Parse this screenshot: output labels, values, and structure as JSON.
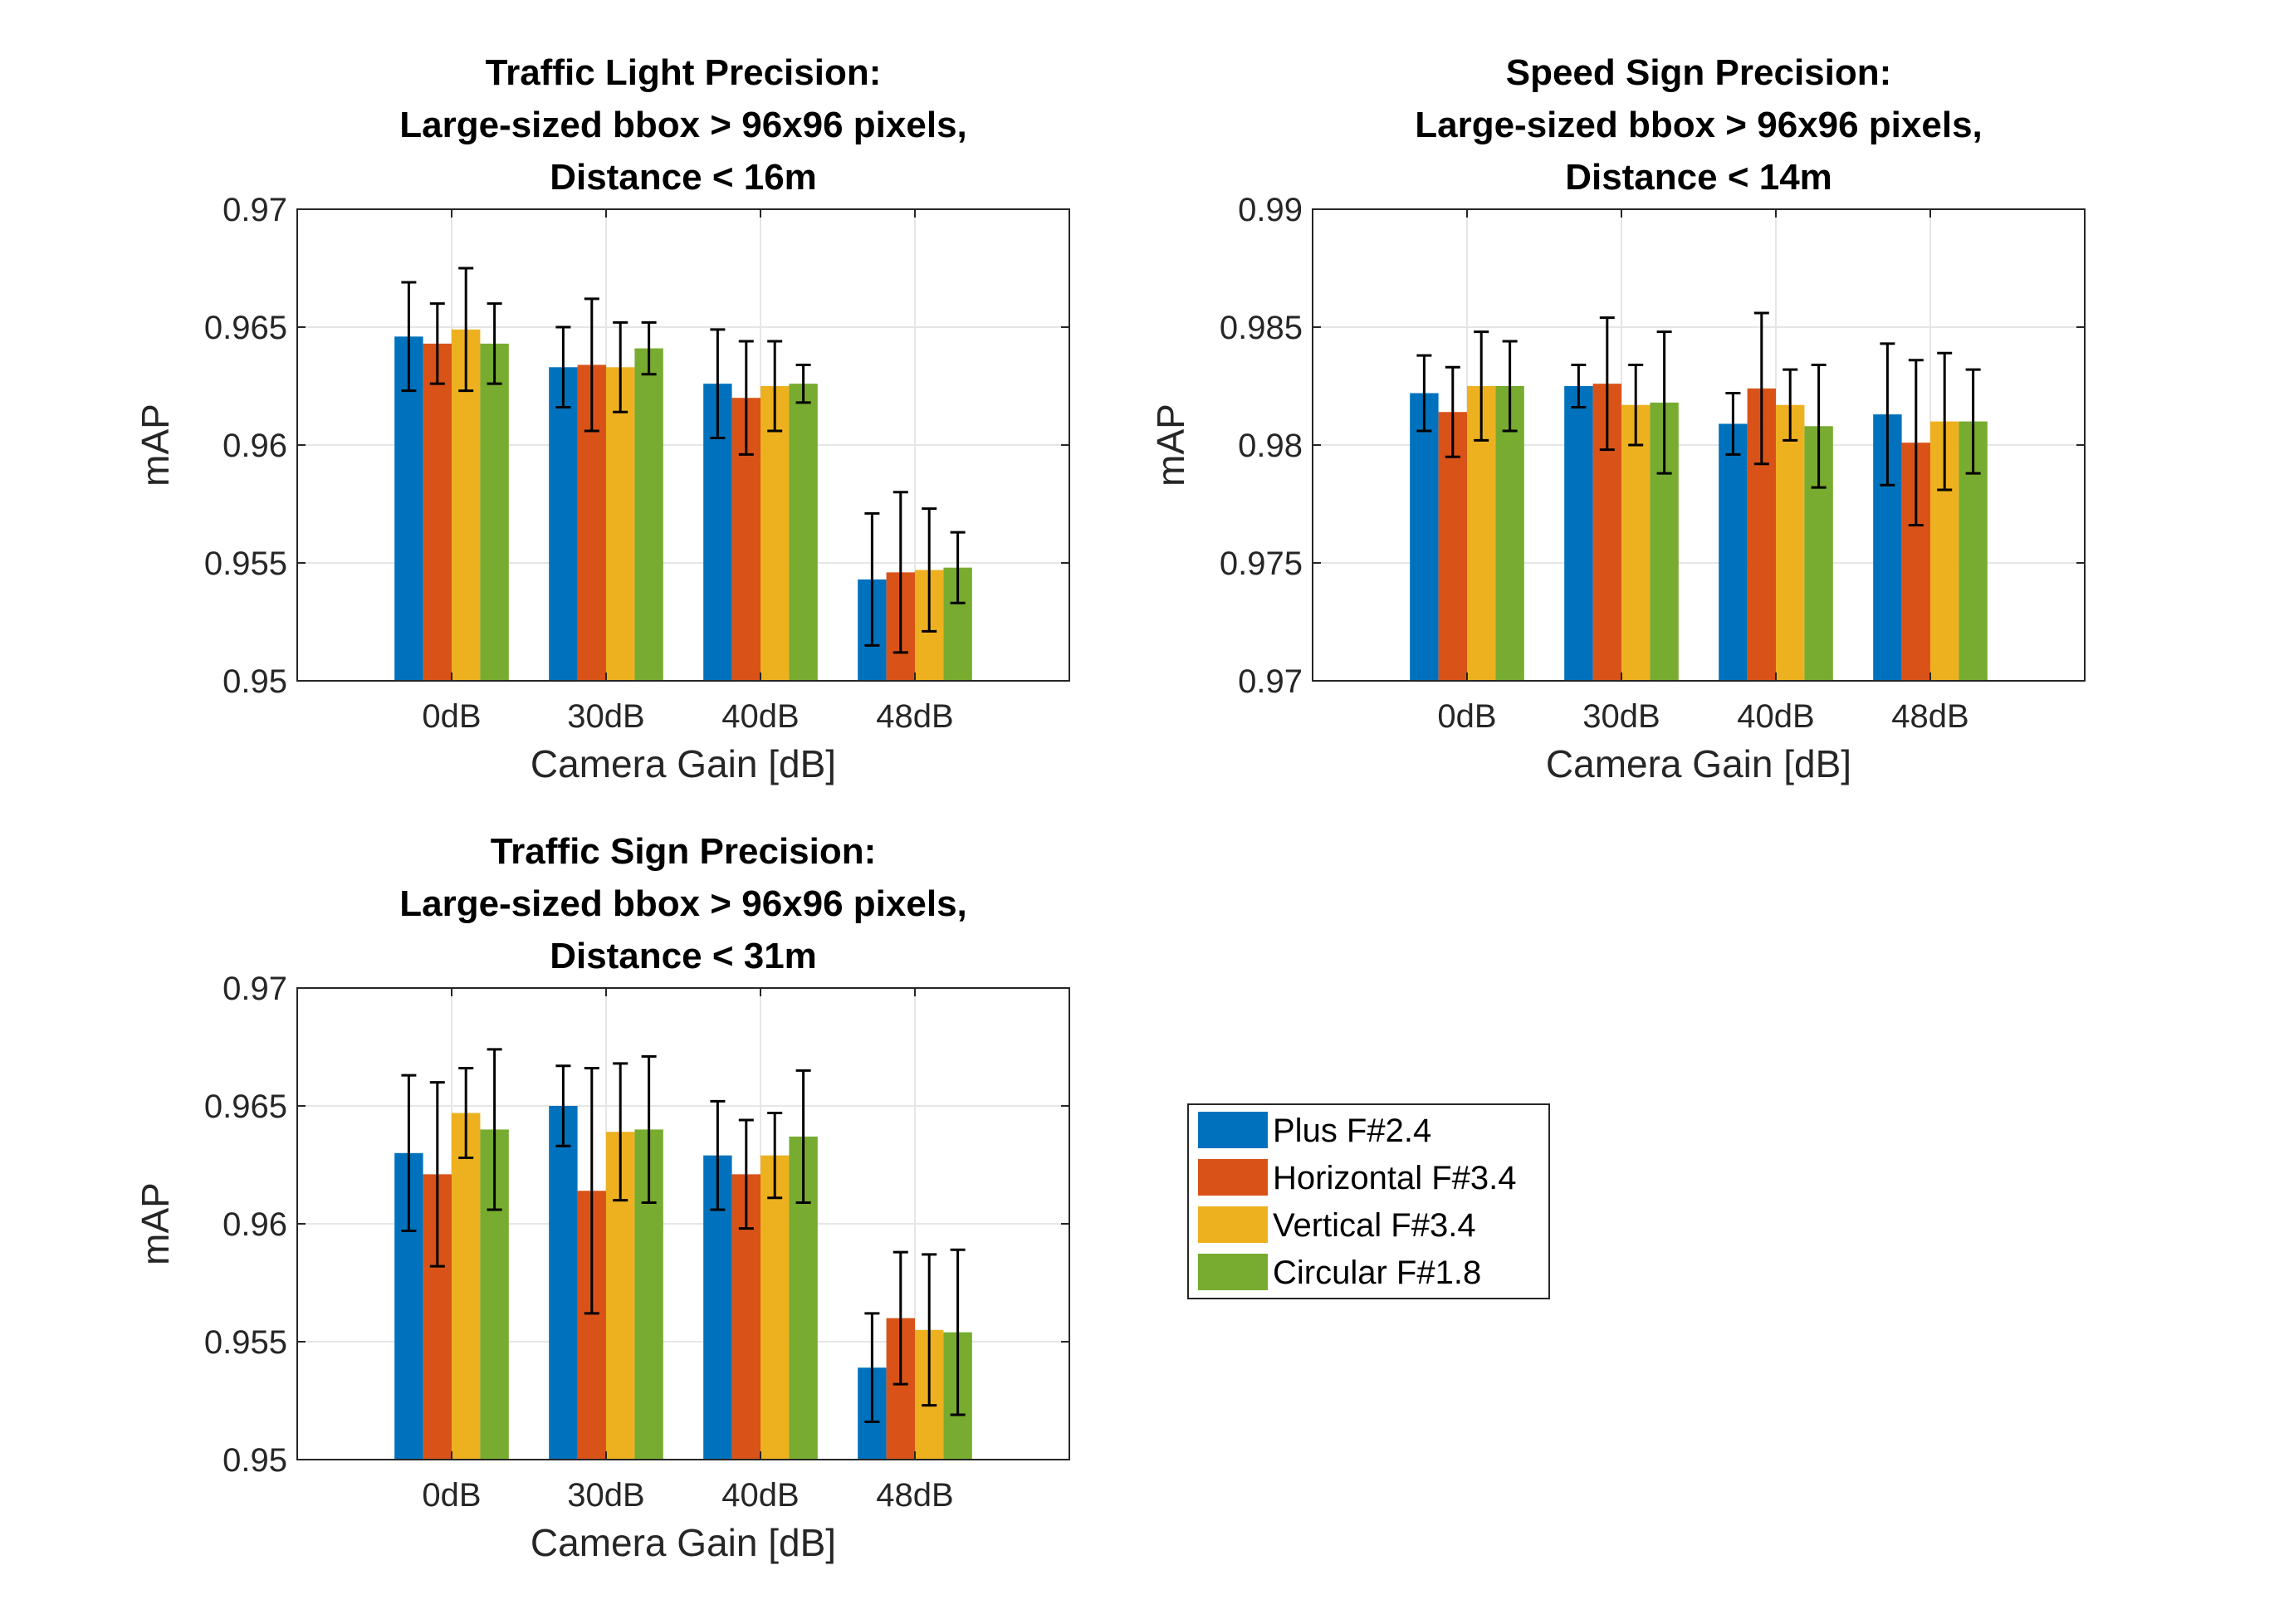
{
  "legend": {
    "entries": [
      {
        "label": "Plus F#2.4",
        "color": "#0072BD"
      },
      {
        "label": "Horizontal F#3.4",
        "color": "#D95319"
      },
      {
        "label": "Vertical F#3.4",
        "color": "#EDB120"
      },
      {
        "label": "Circular F#1.8",
        "color": "#77AC30"
      }
    ]
  },
  "chart_data": [
    {
      "type": "bar",
      "title": [
        "Traffic Light Precision:",
        "Large-sized bbox > 96x96 pixels,",
        "Distance < 16m"
      ],
      "xlabel": "Camera Gain [dB]",
      "ylabel": "mAP",
      "ylim": [
        0.95,
        0.97
      ],
      "yticks": [
        "0.95",
        "0.955",
        "0.96",
        "0.965",
        "0.97"
      ],
      "grid": true,
      "categories": [
        "0dB",
        "30dB",
        "40dB",
        "48dB"
      ],
      "series": [
        {
          "name": "Plus F#2.4",
          "values": [
            0.9646,
            0.9633,
            0.9626,
            0.9543
          ],
          "errors": [
            0.0023,
            0.0017,
            0.0023,
            0.0028
          ]
        },
        {
          "name": "Horizontal F#3.4",
          "values": [
            0.9643,
            0.9634,
            0.962,
            0.9546
          ],
          "errors": [
            0.0017,
            0.0028,
            0.0024,
            0.0034
          ]
        },
        {
          "name": "Vertical F#3.4",
          "values": [
            0.9649,
            0.9633,
            0.9625,
            0.9547
          ],
          "errors": [
            0.0026,
            0.0019,
            0.0019,
            0.0026
          ]
        },
        {
          "name": "Circular F#1.8",
          "values": [
            0.9643,
            0.9641,
            0.9626,
            0.9548
          ],
          "errors": [
            0.0017,
            0.0011,
            0.0008,
            0.0015
          ]
        }
      ]
    },
    {
      "type": "bar",
      "title": [
        "Speed Sign Precision:",
        "Large-sized bbox > 96x96 pixels,",
        "Distance < 14m"
      ],
      "xlabel": "Camera Gain [dB]",
      "ylabel": "mAP",
      "ylim": [
        0.97,
        0.99
      ],
      "yticks": [
        "0.97",
        "0.975",
        "0.98",
        "0.985",
        "0.99"
      ],
      "grid": true,
      "categories": [
        "0dB",
        "30dB",
        "40dB",
        "48dB"
      ],
      "series": [
        {
          "name": "Plus F#2.4",
          "values": [
            0.9822,
            0.9825,
            0.9809,
            0.9813
          ],
          "errors": [
            0.0016,
            0.0009,
            0.0013,
            0.003
          ]
        },
        {
          "name": "Horizontal F#3.4",
          "values": [
            0.9814,
            0.9826,
            0.9824,
            0.9801
          ],
          "errors": [
            0.0019,
            0.0028,
            0.0032,
            0.0035
          ]
        },
        {
          "name": "Vertical F#3.4",
          "values": [
            0.9825,
            0.9817,
            0.9817,
            0.981
          ],
          "errors": [
            0.0023,
            0.0017,
            0.0015,
            0.0029
          ]
        },
        {
          "name": "Circular F#1.8",
          "values": [
            0.9825,
            0.9818,
            0.9808,
            0.981
          ],
          "errors": [
            0.0019,
            0.003,
            0.0026,
            0.0022
          ]
        }
      ]
    },
    {
      "type": "bar",
      "title": [
        "Traffic Sign Precision:",
        "Large-sized bbox > 96x96 pixels,",
        "Distance < 31m"
      ],
      "xlabel": "Camera Gain [dB]",
      "ylabel": "mAP",
      "ylim": [
        0.95,
        0.97
      ],
      "yticks": [
        "0.95",
        "0.955",
        "0.96",
        "0.965",
        "0.97"
      ],
      "grid": true,
      "categories": [
        "0dB",
        "30dB",
        "40dB",
        "48dB"
      ],
      "series": [
        {
          "name": "Plus F#2.4",
          "values": [
            0.963,
            0.965,
            0.9629,
            0.9539
          ],
          "errors": [
            0.0033,
            0.0017,
            0.0023,
            0.0023
          ]
        },
        {
          "name": "Horizontal F#3.4",
          "values": [
            0.9621,
            0.9614,
            0.9621,
            0.956
          ],
          "errors": [
            0.0039,
            0.0052,
            0.0023,
            0.0028
          ]
        },
        {
          "name": "Vertical F#3.4",
          "values": [
            0.9647,
            0.9639,
            0.9629,
            0.9555
          ],
          "errors": [
            0.0019,
            0.0029,
            0.0018,
            0.0032
          ]
        },
        {
          "name": "Circular F#1.8",
          "values": [
            0.964,
            0.964,
            0.9637,
            0.9554
          ],
          "errors": [
            0.0034,
            0.0031,
            0.0028,
            0.0035
          ]
        }
      ]
    }
  ]
}
